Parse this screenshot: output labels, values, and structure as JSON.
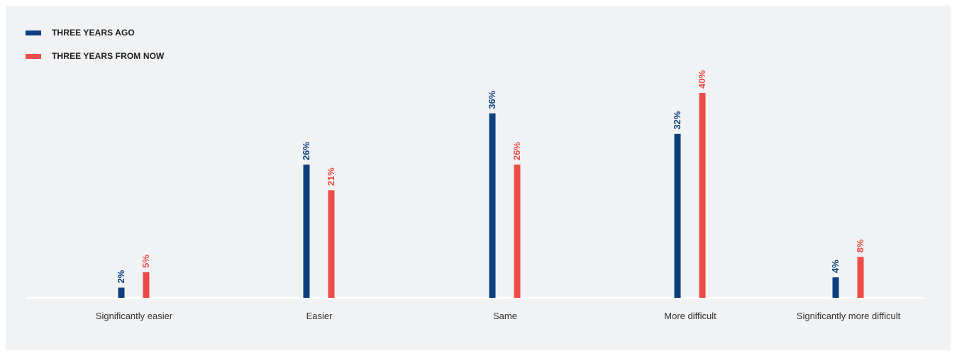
{
  "chart_data": {
    "type": "bar",
    "categories": [
      "Significantly easier",
      "Easier",
      "Same",
      "More difficult",
      "Significantly more difficult"
    ],
    "series": [
      {
        "name": "THREE YEARS AGO",
        "values": [
          2,
          26,
          36,
          32,
          4
        ],
        "color": "#0d3f7f",
        "labels": [
          "2%",
          "26%",
          "36%",
          "32%",
          "4%"
        ]
      },
      {
        "name": "THREE YEARS FROM NOW",
        "values": [
          5,
          21,
          26,
          40,
          8
        ],
        "color": "#ec4c47",
        "labels": [
          "5%",
          "21%",
          "26%",
          "40%",
          "8%"
        ]
      }
    ],
    "ylim": [
      0,
      40
    ],
    "grid": false,
    "legend": "top-left"
  }
}
